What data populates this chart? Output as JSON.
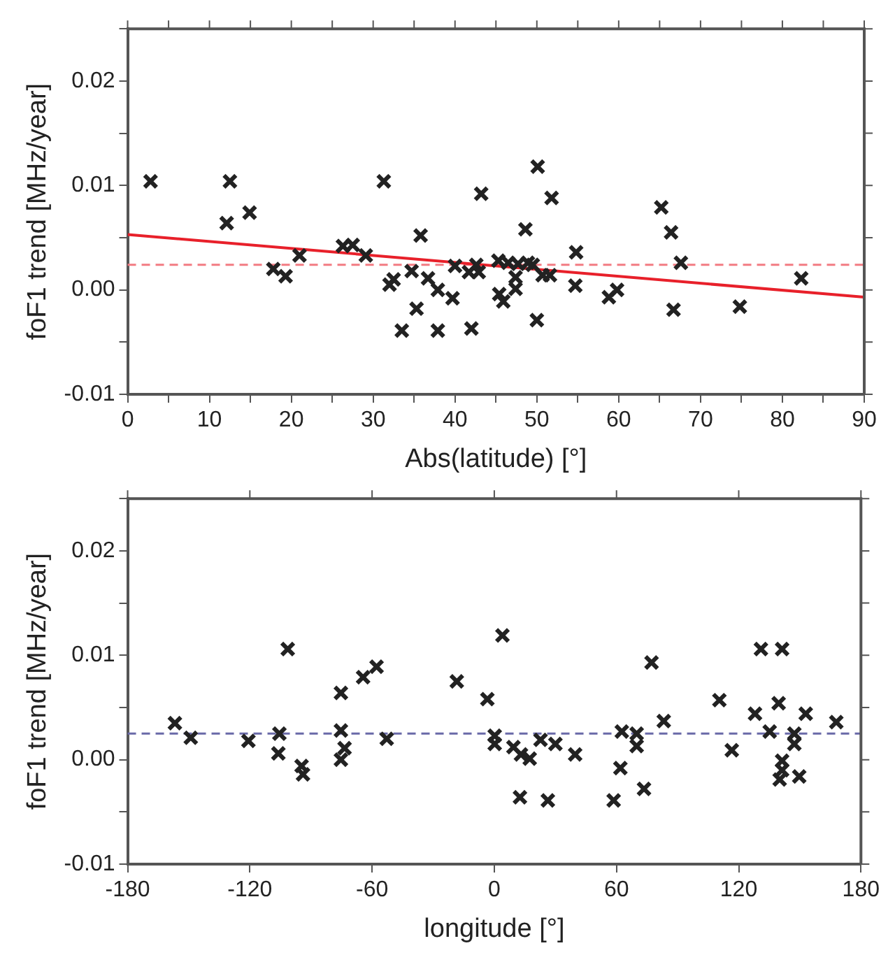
{
  "chart_data": [
    {
      "type": "scatter",
      "xlabel": "Abs(latitude) [°]",
      "ylabel": "foF1 trend [MHz/year]",
      "grid": false,
      "legend": false,
      "xlim": [
        0,
        90
      ],
      "xticks": [
        0,
        {
          "value": 5,
          "label": null
        },
        10,
        {
          "value": 15,
          "label": null
        },
        20,
        {
          "value": 25,
          "label": null
        },
        30,
        {
          "value": 35,
          "label": null
        },
        40,
        {
          "value": 45,
          "label": null
        },
        50,
        {
          "value": 55,
          "label": null
        },
        60,
        {
          "value": 65,
          "label": null
        },
        70,
        {
          "value": 75,
          "label": null
        },
        80,
        {
          "value": 85,
          "label": null
        },
        90
      ],
      "ylim": [
        -0.01,
        0.025
      ],
      "yticks": [
        -0.01,
        {
          "value": -0.005,
          "label": null
        },
        {
          "value": 0,
          "label": "0.00"
        },
        {
          "value": 0.005,
          "label": null
        },
        0.01,
        {
          "value": 0.015,
          "label": null
        },
        0.02,
        {
          "value": 0.025,
          "label": null
        }
      ],
      "ref_lines": [
        {
          "axis": "y",
          "value": 0.0024,
          "color": "#f27b82",
          "line_style": "dashed"
        }
      ],
      "series": [
        {
          "type": "scatter",
          "marker": "cross",
          "color": "#222222",
          "x": [
            2.8,
            12.5,
            12.1,
            14.9,
            17.8,
            19.3,
            21.0,
            26.3,
            27.5,
            29.1,
            31.3,
            32.0,
            32.5,
            33.5,
            34.7,
            35.3,
            35.8,
            36.7,
            37.9,
            37.9,
            39.7,
            40.0,
            42.0,
            41.7,
            42.6,
            43.2,
            42.9,
            45.3,
            45.4,
            45.9,
            50.1,
            51.8,
            48.6,
            46.5,
            47.7,
            48.9,
            49.5,
            47.4,
            47.4,
            50.7,
            51.6,
            50.0,
            54.8,
            54.7,
            58.8,
            59.8,
            65.2,
            66.4,
            67.6,
            66.7,
            74.8,
            82.3
          ],
          "values": [
            0.0104,
            0.0104,
            0.0064,
            0.0074,
            0.002,
            0.0013,
            0.0033,
            0.0042,
            0.0043,
            0.0033,
            0.0104,
            0.0005,
            0.001,
            -0.0039,
            0.0018,
            -0.0018,
            0.0052,
            0.0011,
            0.0,
            -0.0039,
            -0.0008,
            0.0023,
            -0.0037,
            0.0017,
            0.0024,
            0.0092,
            0.0017,
            0.0028,
            -0.0004,
            -0.0011,
            0.0118,
            0.0088,
            0.0058,
            0.0026,
            0.0025,
            0.0026,
            0.0024,
            0.0012,
            0.0001,
            0.0014,
            0.0014,
            -0.0029,
            0.0036,
            0.0004,
            -0.0007,
            0.0,
            0.0079,
            0.0055,
            0.0026,
            -0.0019,
            -0.0016,
            0.0011
          ]
        },
        {
          "type": "line",
          "color": "#e8202a",
          "x": [
            0,
            90
          ],
          "values": [
            0.0053,
            -0.0007
          ]
        }
      ]
    },
    {
      "type": "scatter",
      "xlabel": "longitude [°]",
      "ylabel": "foF1 trend [MHz/year]",
      "grid": false,
      "legend": false,
      "xlim": [
        -180,
        180
      ],
      "xticks": [
        -180,
        -120,
        -60,
        0,
        60,
        120,
        180
      ],
      "ylim": [
        -0.01,
        0.025
      ],
      "yticks": [
        -0.01,
        {
          "value": -0.005,
          "label": null
        },
        {
          "value": 0,
          "label": "0.00"
        },
        {
          "value": 0.005,
          "label": null
        },
        0.01,
        {
          "value": 0.015,
          "label": null
        },
        0.02,
        {
          "value": 0.025,
          "label": null
        }
      ],
      "ref_lines": [
        {
          "axis": "y",
          "value": 0.0025,
          "color": "#6a6aa8",
          "line_style": "dashed"
        }
      ],
      "series": [
        {
          "type": "scatter",
          "marker": "cross",
          "color": "#222222",
          "x": [
            -156.8,
            -149.0,
            -120.7,
            -105.5,
            -106.0,
            -101.4,
            -94.6,
            -93.9,
            -75.3,
            -75.3,
            -73.5,
            -75.3,
            -64.4,
            -57.8,
            -52.8,
            -18.4,
            -3.4,
            0.2,
            0.2,
            4.0,
            9.4,
            13.1,
            17.4,
            12.6,
            22.7,
            30.0,
            26.3,
            39.7,
            58.6,
            61.9,
            62.6,
            69.9,
            69.9,
            73.5,
            77.2,
            83.2,
            110.5,
            116.6,
            128.0,
            130.9,
            135.2,
            141.3,
            139.6,
            147.3,
            147.3,
            141.3,
            141.3,
            140.1,
            149.7,
            152.9,
            167.9
          ],
          "values": [
            0.0035,
            0.0021,
            0.0018,
            0.0025,
            0.0006,
            0.0106,
            -0.0006,
            -0.0014,
            0.0064,
            0.0028,
            0.0011,
            0.0,
            0.0079,
            0.0089,
            0.002,
            0.0075,
            0.0058,
            0.0023,
            0.0015,
            0.0119,
            0.0012,
            0.0005,
            0.0001,
            -0.0036,
            0.0019,
            0.0015,
            -0.0039,
            0.0005,
            -0.0039,
            -0.0008,
            0.0027,
            0.0025,
            0.0013,
            -0.0028,
            0.0093,
            0.0037,
            0.0057,
            0.0009,
            0.0044,
            0.0106,
            0.0027,
            0.0106,
            0.0054,
            0.0025,
            0.0015,
            -0.0001,
            -0.001,
            -0.0019,
            -0.0016,
            0.0044,
            0.0036
          ]
        }
      ]
    }
  ]
}
